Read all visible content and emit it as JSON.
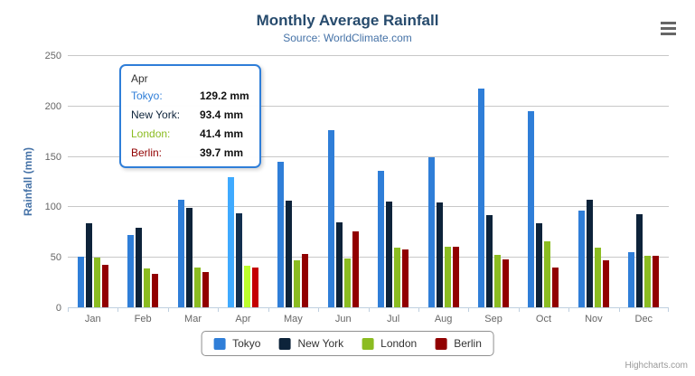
{
  "title": "Monthly Average Rainfall",
  "subtitle": "Source: WorldClimate.com",
  "credits_label": "Highcharts.com",
  "colors": {
    "title": "#274b6d",
    "subtitle": "#4572a7",
    "axis_title": "#4572a7",
    "tick_label": "#666666",
    "gridline": "#c8c8c8",
    "axis_line": "#c0d0e0",
    "tooltip_border": "#2f7ed8"
  },
  "chart_data": {
    "type": "bar",
    "title": "Monthly Average Rainfall",
    "subtitle": "Source: WorldClimate.com",
    "categories": [
      "Jan",
      "Feb",
      "Mar",
      "Apr",
      "May",
      "Jun",
      "Jul",
      "Aug",
      "Sep",
      "Oct",
      "Nov",
      "Dec"
    ],
    "series": [
      {
        "name": "Tokyo",
        "color": "#2f7ed8",
        "values": [
          49.9,
          71.5,
          106.4,
          129.2,
          144.0,
          176.0,
          135.6,
          148.5,
          216.4,
          194.1,
          95.6,
          54.4
        ]
      },
      {
        "name": "New York",
        "color": "#0d233a",
        "values": [
          83.6,
          78.8,
          98.5,
          93.4,
          106.0,
          84.5,
          105.0,
          104.3,
          91.2,
          83.5,
          106.6,
          92.3
        ]
      },
      {
        "name": "London",
        "color": "#8bbc21",
        "values": [
          48.9,
          38.8,
          39.3,
          41.4,
          47.0,
          48.3,
          59.0,
          59.6,
          52.4,
          65.2,
          59.3,
          51.2
        ]
      },
      {
        "name": "Berlin",
        "color": "#910000",
        "values": [
          42.4,
          33.2,
          34.5,
          39.7,
          52.6,
          75.5,
          57.4,
          60.4,
          47.6,
          39.1,
          46.8,
          51.1
        ]
      }
    ],
    "xlabel": "",
    "ylabel": "Rainfall (mm)",
    "ylim": [
      0,
      250
    ],
    "ytick_step": 50,
    "grid": true,
    "legend_position": "bottom",
    "highlighted_category": "Apr"
  },
  "tooltip": {
    "header": "Apr",
    "unit": "mm",
    "rows": [
      {
        "name": "Tokyo",
        "value": "129.2 mm",
        "color": "#2f7ed8"
      },
      {
        "name": "New York",
        "value": "93.4 mm",
        "color": "#0d233a"
      },
      {
        "name": "London",
        "value": "41.4 mm",
        "color": "#8bbc21"
      },
      {
        "name": "Berlin",
        "value": "39.7 mm",
        "color": "#910000"
      }
    ]
  },
  "menu": {
    "icon": "hamburger-icon"
  }
}
